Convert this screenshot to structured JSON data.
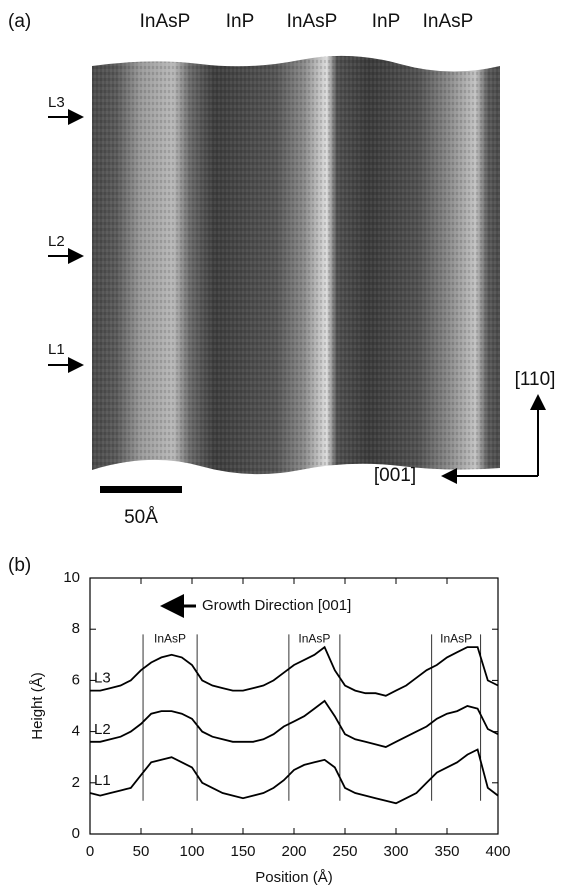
{
  "panel_a": {
    "label": "(a)",
    "top_labels": [
      "InAsP",
      "InP",
      "InAsP",
      "InP",
      "InAsP"
    ],
    "line_labels": [
      "L3",
      "L2",
      "L1"
    ],
    "scale_bar": "50Å",
    "axis_vertical": "[110]",
    "axis_horizontal": "[001]"
  },
  "chart_data": {
    "type": "line",
    "panel_label": "(b)",
    "xlabel": "Position (Å)",
    "ylabel": "Height (Å)",
    "annotation": "Growth Direction [001]",
    "region_labels": [
      "InAsP",
      "InAsP",
      "InAsP"
    ],
    "boundaries": [
      52,
      105,
      195,
      245,
      335,
      383
    ],
    "x": [
      0,
      10,
      20,
      30,
      40,
      50,
      60,
      70,
      80,
      90,
      100,
      110,
      120,
      130,
      140,
      150,
      160,
      170,
      180,
      190,
      200,
      210,
      220,
      230,
      240,
      250,
      260,
      270,
      280,
      290,
      300,
      310,
      320,
      330,
      340,
      350,
      360,
      370,
      380,
      390,
      400
    ],
    "series": [
      {
        "name": "L1",
        "color": "#000000",
        "values": [
          1.6,
          1.5,
          1.6,
          1.7,
          1.8,
          2.3,
          2.8,
          2.9,
          3.0,
          2.8,
          2.6,
          2.0,
          1.8,
          1.6,
          1.5,
          1.4,
          1.5,
          1.6,
          1.8,
          2.1,
          2.5,
          2.7,
          2.8,
          2.9,
          2.6,
          1.8,
          1.6,
          1.5,
          1.4,
          1.3,
          1.2,
          1.4,
          1.6,
          2.0,
          2.4,
          2.6,
          2.8,
          3.1,
          3.3,
          1.8,
          1.5
        ]
      },
      {
        "name": "L2",
        "color": "#000000",
        "values": [
          3.6,
          3.6,
          3.7,
          3.8,
          4.0,
          4.3,
          4.7,
          4.8,
          4.8,
          4.7,
          4.5,
          4.0,
          3.8,
          3.7,
          3.6,
          3.6,
          3.6,
          3.7,
          3.9,
          4.2,
          4.4,
          4.6,
          4.9,
          5.2,
          4.6,
          3.9,
          3.7,
          3.6,
          3.5,
          3.4,
          3.6,
          3.8,
          4.0,
          4.2,
          4.5,
          4.7,
          4.8,
          5.0,
          4.9,
          4.1,
          3.9
        ]
      },
      {
        "name": "L3",
        "color": "#000000",
        "values": [
          5.6,
          5.6,
          5.7,
          5.8,
          6.0,
          6.4,
          6.7,
          6.9,
          7.0,
          6.9,
          6.6,
          6.0,
          5.8,
          5.7,
          5.6,
          5.6,
          5.7,
          5.8,
          6.0,
          6.3,
          6.6,
          6.8,
          7.0,
          7.3,
          6.4,
          5.8,
          5.6,
          5.5,
          5.5,
          5.4,
          5.6,
          5.8,
          6.1,
          6.4,
          6.6,
          6.9,
          7.1,
          7.3,
          7.3,
          6.0,
          5.8
        ]
      }
    ],
    "xlim": [
      0,
      400
    ],
    "xticks": [
      0,
      50,
      100,
      150,
      200,
      250,
      300,
      350,
      400
    ],
    "ylim": [
      0,
      10
    ],
    "yticks": [
      0,
      2,
      4,
      6,
      8,
      10
    ]
  }
}
